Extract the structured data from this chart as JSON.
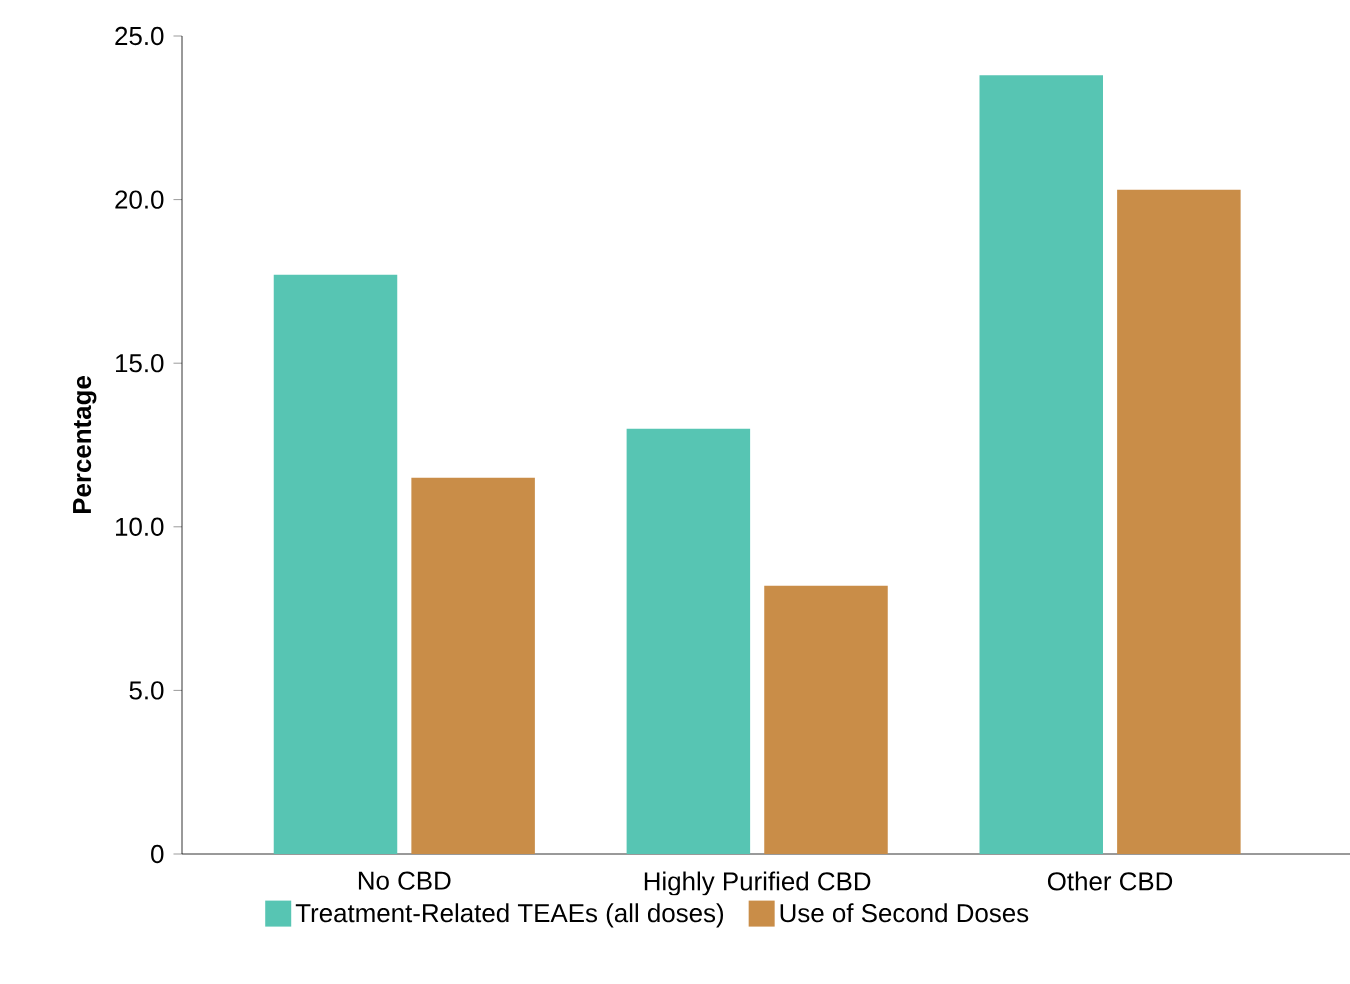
{
  "chart_data": {
    "type": "bar",
    "ylabel": "Percentage",
    "categories": [
      "No CBD",
      "Highly Purified CBD",
      "Other CBD"
    ],
    "series": [
      {
        "name": "Treatment-Related TEAEs (all doses)",
        "color": "#57c5b3",
        "values": [
          17.7,
          13.0,
          23.8
        ]
      },
      {
        "name": "Use of Second Doses",
        "color": "#c98d48",
        "values": [
          11.5,
          8.2,
          20.3
        ]
      }
    ],
    "ylim": [
      0,
      25
    ],
    "yticks": [
      0,
      {
        "value": 5,
        "label": "5.0"
      },
      {
        "value": 10,
        "label": "10.0"
      },
      {
        "value": 15,
        "label": "15.0"
      },
      {
        "value": 20,
        "label": "20.0"
      },
      {
        "value": 25,
        "label": "25.0"
      }
    ],
    "grid": false,
    "legend": "bottom"
  }
}
